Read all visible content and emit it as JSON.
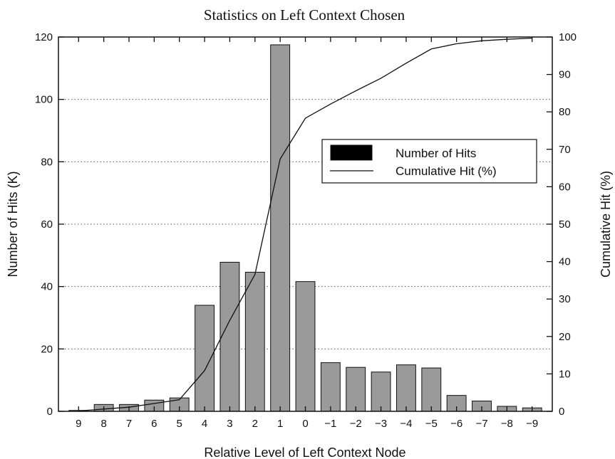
{
  "chart_data": {
    "type": "bar",
    "title": "Statistics on Left Context Chosen",
    "xlabel": "Relative Level of Left Context Node",
    "ylabel": "Number of Hits (K)",
    "y2label": "Cumulative Hit (%)",
    "categories": [
      "9",
      "8",
      "7",
      "6",
      "5",
      "4",
      "3",
      "2",
      "1",
      "0",
      "−1",
      "−2",
      "−3",
      "−4",
      "−5",
      "−6",
      "−7",
      "−8",
      "−9"
    ],
    "ylim": [
      0,
      120
    ],
    "y2lim": [
      0,
      100
    ],
    "yticks": [
      0,
      20,
      40,
      60,
      80,
      100,
      120
    ],
    "y2ticks": [
      0,
      10,
      20,
      30,
      40,
      50,
      60,
      70,
      80,
      90,
      100
    ],
    "grid": "dotted-horizontal",
    "legend_position": "right",
    "bar_color": "#9a9a9a",
    "series": [
      {
        "name": "Number of Hits",
        "kind": "bar",
        "axis": "left",
        "values": [
          0.3,
          2.2,
          2.2,
          3.6,
          4.3,
          34,
          47.8,
          44.6,
          117.5,
          41.6,
          15.6,
          14.1,
          12.6,
          14.9,
          13.9,
          5.1,
          3.3,
          1.6,
          1.1
        ]
      },
      {
        "name": "Cumulative Hit (%)",
        "kind": "line",
        "axis": "right",
        "values": [
          0.1,
          0.6,
          1.1,
          2.1,
          3.1,
          10.9,
          24.3,
          36.6,
          67.4,
          78.3,
          82.1,
          85.6,
          89.0,
          93.0,
          96.8,
          98.2,
          99.0,
          99.4,
          99.7
        ]
      }
    ]
  }
}
